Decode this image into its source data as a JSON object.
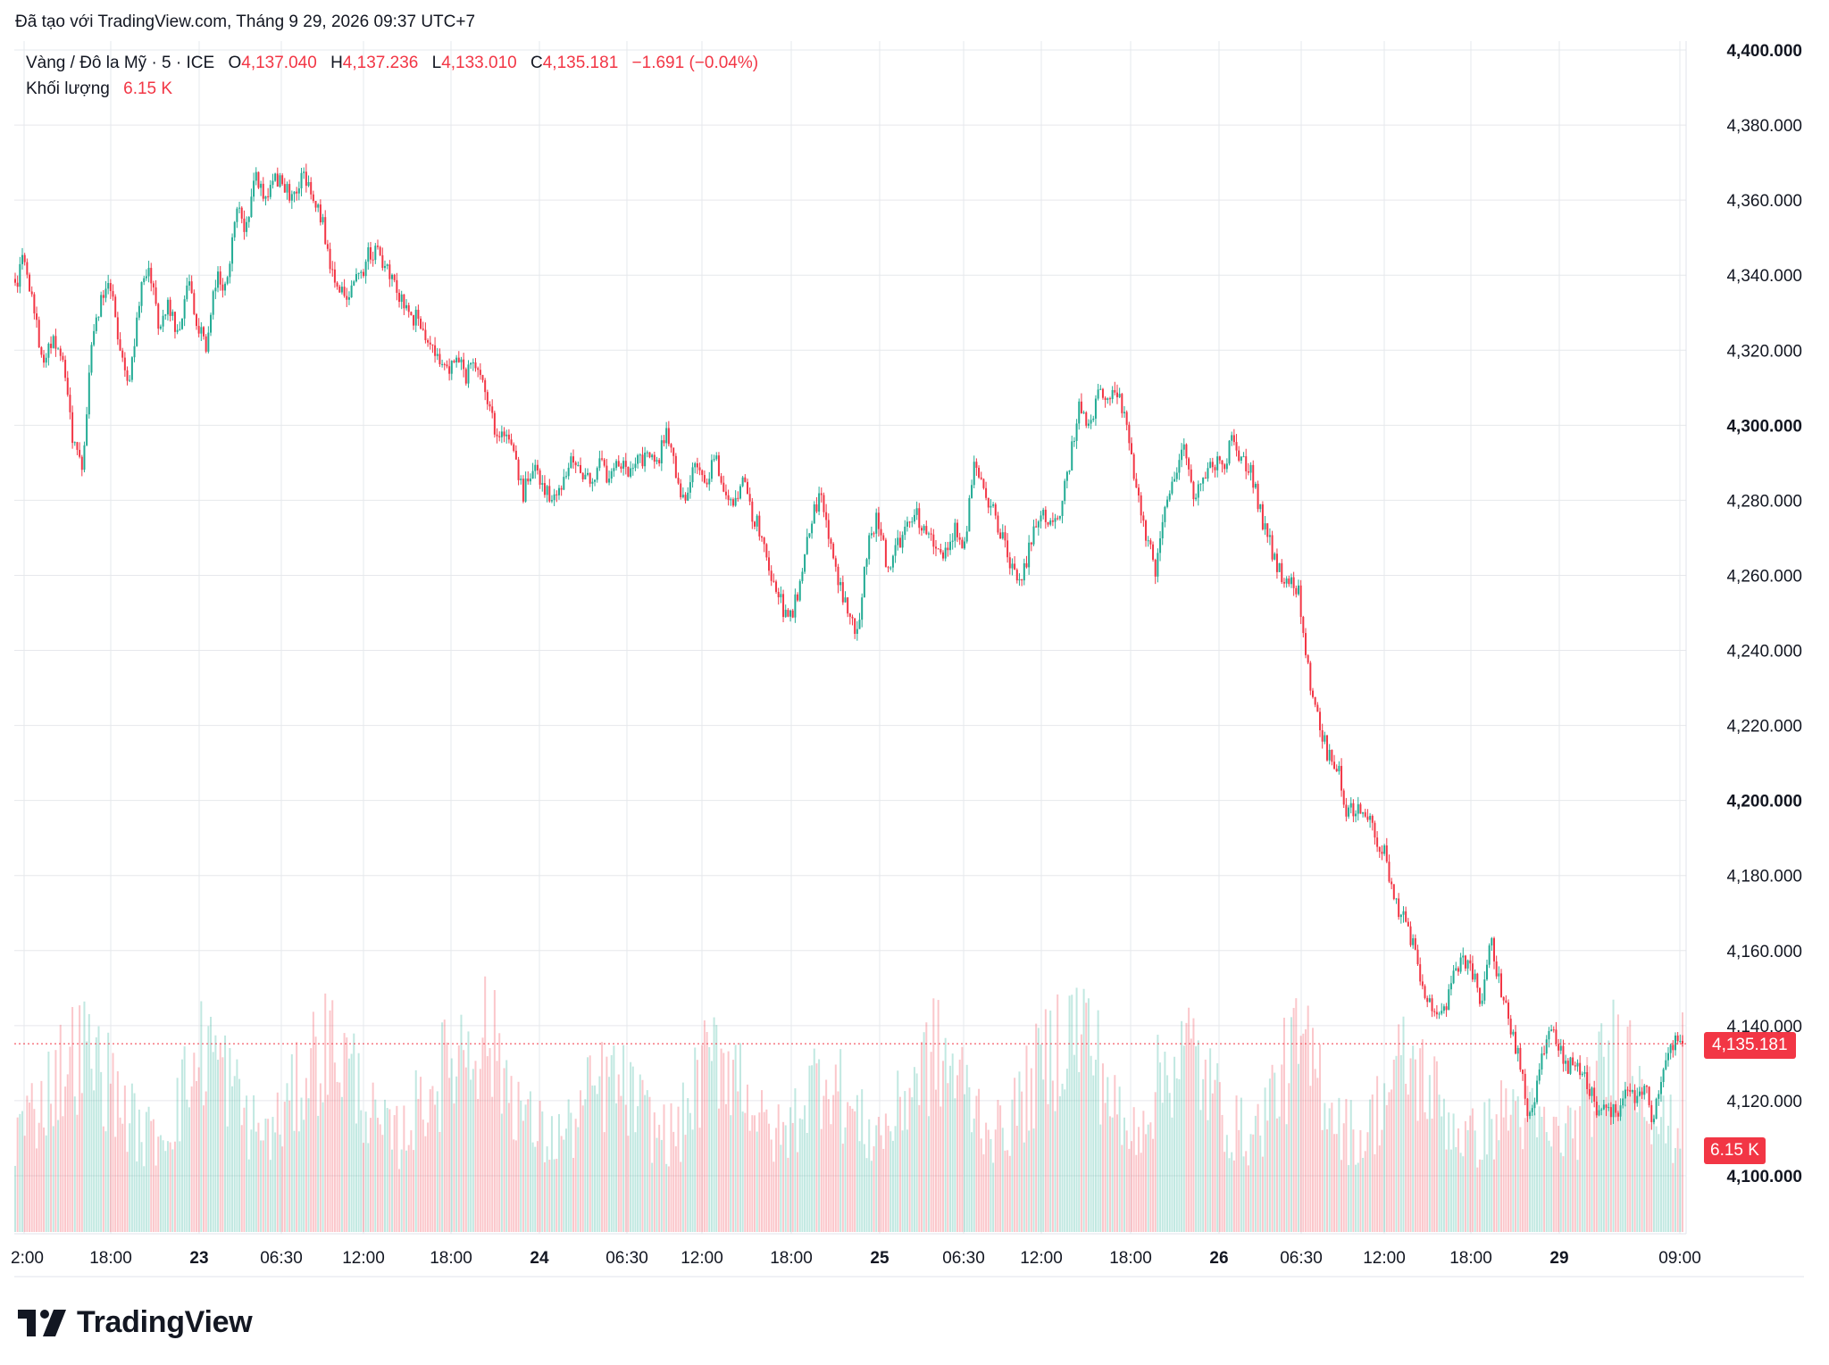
{
  "header": {
    "credit": "Đã tạo với TradingView.com, Tháng 9 29, 2026 09:37 UTC+7"
  },
  "legend": {
    "symbol": "Vàng / Đô la Mỹ · 5 · ICE",
    "o_label": "O",
    "o_value": "4,137.040",
    "h_label": "H",
    "h_value": "4,137.236",
    "l_label": "L",
    "l_value": "4,133.010",
    "c_label": "C",
    "c_value": "4,135.181",
    "change": "−1.691 (−0.04%)",
    "volume_label": "Khối lượng",
    "volume_value": "6.15 K"
  },
  "price_tag": "4,135.181",
  "volume_tag": "6.15 K",
  "brand": {
    "name": "TradingView"
  },
  "colors": {
    "up": "#22ab94",
    "down": "#f23645",
    "grid": "#e6e8ec",
    "text": "#131722"
  },
  "chart_data": {
    "type": "candlestick",
    "ylim": [
      4085,
      4400
    ],
    "y_ticks": [
      "4,100.000",
      "4,120.000",
      "4,140.000",
      "4,160.000",
      "4,180.000",
      "4,200.000",
      "4,220.000",
      "4,240.000",
      "4,260.000",
      "4,280.000",
      "4,300.000",
      "4,320.000",
      "4,340.000",
      "4,360.000",
      "4,380.000",
      "4,400.000"
    ],
    "y_ticks_bold": [
      "4,100.000",
      "4,200.000",
      "4,300.000",
      "4,400.000"
    ],
    "x_ticks": [
      "2:00",
      "18:00",
      "23",
      "06:30",
      "12:00",
      "18:00",
      "24",
      "06:30",
      "12:00",
      "18:00",
      "25",
      "06:30",
      "12:00",
      "18:00",
      "26",
      "06:30",
      "12:00",
      "18:00",
      "29",
      "09:00"
    ],
    "x_ticks_bold": [
      "23",
      "24",
      "25",
      "26",
      "29"
    ],
    "last_price": 4135.181,
    "price_path": [
      4337,
      4346,
      4328,
      4318,
      4322,
      4315,
      4296,
      4290,
      4322,
      4335,
      4338,
      4320,
      4311,
      4335,
      4341,
      4326,
      4332,
      4325,
      4338,
      4328,
      4320,
      4341,
      4336,
      4358,
      4352,
      4367,
      4362,
      4365,
      4364,
      4360,
      4366,
      4362,
      4355,
      4342,
      4336,
      4335,
      4340,
      4346,
      4345,
      4342,
      4335,
      4330,
      4328,
      4322,
      4318,
      4315,
      4318,
      4313,
      4316,
      4310,
      4300,
      4296,
      4293,
      4282,
      4288,
      4285,
      4280,
      4284,
      4291,
      4288,
      4284,
      4290,
      4286,
      4291,
      4288,
      4292,
      4291,
      4290,
      4300,
      4285,
      4279,
      4290,
      4284,
      4292,
      4281,
      4280,
      4285,
      4276,
      4270,
      4260,
      4252,
      4248,
      4260,
      4275,
      4282,
      4270,
      4258,
      4250,
      4245,
      4270,
      4275,
      4262,
      4268,
      4272,
      4276,
      4270,
      4268,
      4265,
      4272,
      4266,
      4290,
      4283,
      4278,
      4270,
      4262,
      4260,
      4268,
      4278,
      4273,
      4277,
      4290,
      4305,
      4298,
      4310,
      4306,
      4308,
      4300,
      4282,
      4270,
      4262,
      4280,
      4287,
      4293,
      4282,
      4285,
      4291,
      4288,
      4296,
      4290,
      4288,
      4276,
      4268,
      4261,
      4258,
      4255,
      4233,
      4222,
      4212,
      4210,
      4196,
      4198,
      4197,
      4190,
      4185,
      4172,
      4168,
      4160,
      4150,
      4145,
      4142,
      4152,
      4158,
      4154,
      4147,
      4162,
      4150,
      4140,
      4130,
      4115,
      4127,
      4140,
      4135,
      4129,
      4130,
      4125,
      4118,
      4120,
      4116,
      4124,
      4120,
      4125,
      4114,
      4130,
      4135,
      4135.181
    ],
    "volume_profile": [
      3.2,
      4.1,
      5.2,
      6.0,
      5.4,
      4.2,
      3.1,
      3.3,
      4.8,
      6.3,
      5.0,
      3.5,
      3.2,
      4.4,
      5.8,
      6.2,
      4.9,
      3.3,
      3.1,
      4.3,
      5.2,
      6.3,
      6.6,
      5.1,
      3.6,
      3.0,
      3.4,
      4.6,
      5.0,
      4.2,
      3.3,
      3.2,
      5.0,
      6.0,
      5.2,
      3.4,
      3.1,
      4.5,
      5.5,
      4.0,
      3.2,
      3.5,
      5.0,
      5.9,
      5.2,
      4.0,
      3.2,
      4.2,
      5.4,
      6.5,
      6.8,
      5.0,
      3.0,
      4.2,
      5.6,
      6.0,
      4.6,
      3.4,
      3.2,
      4.8,
      6.0,
      5.2,
      3.6,
      3.0,
      4.4,
      5.6,
      5.0,
      3.8,
      3.0,
      3.4,
      4.2,
      3.6,
      3.1,
      3.5,
      5.0,
      6.2,
      5.4,
      3.5,
      3.2
    ],
    "volume_ylim": [
      0,
      9
    ]
  }
}
